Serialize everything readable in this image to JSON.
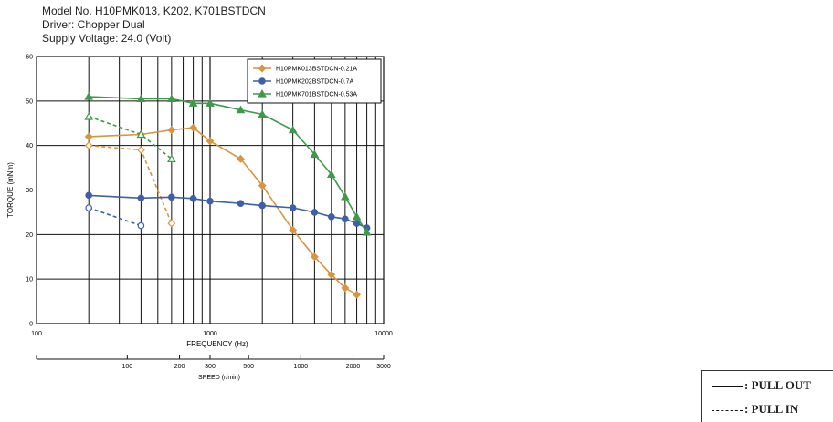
{
  "header": {
    "line1": "Model No. H10PMK013, K202, K701BSTDCN",
    "line2": "Driver: Chopper Dual",
    "line3": "Supply Voltage: 24.0 (Volt)"
  },
  "chart_data": {
    "type": "line",
    "xscale": "log",
    "xlabel": "FREQUENCY (Hz)",
    "ylabel": "TORQUE (mNm)",
    "xlim": [
      100,
      10000
    ],
    "ylim": [
      0,
      60
    ],
    "xticks": [
      {
        "value": 100,
        "label": "100"
      },
      {
        "value": 1000,
        "label": "1000"
      },
      {
        "value": 10000,
        "label": "10000"
      }
    ],
    "yticks": [
      0,
      10,
      20,
      30,
      40,
      50,
      60
    ],
    "speed_axis": {
      "label": "SPEED (r/min)",
      "ticks": [
        {
          "freq": 333.3,
          "label": "100"
        },
        {
          "freq": 666.7,
          "label": "200"
        },
        {
          "freq": 1000,
          "label": "300"
        },
        {
          "freq": 1666.7,
          "label": "500"
        },
        {
          "freq": 3333.3,
          "label": "1000"
        },
        {
          "freq": 6666.7,
          "label": "2000"
        },
        {
          "freq": 10000,
          "label": "3000"
        }
      ]
    },
    "grid": true,
    "legend_position": "top-right",
    "series": [
      {
        "name": "H10PMK013BSTDCN-0.21A",
        "color": "#d9943f",
        "marker": "diamond",
        "pull_out": {
          "x": [
            200,
            400,
            600,
            800,
            1000,
            1500,
            2000,
            3000,
            4000,
            5000,
            6000,
            7000
          ],
          "y": [
            42,
            42.5,
            43.5,
            44,
            41,
            37,
            31,
            21,
            15,
            11,
            8,
            6.5
          ]
        },
        "pull_in": {
          "x": [
            200,
            400,
            600
          ],
          "y": [
            40,
            39,
            22.5
          ]
        }
      },
      {
        "name": "H10PMK202BSTDCN-0.7A",
        "color": "#3f5fa8",
        "marker": "circle",
        "pull_out": {
          "x": [
            200,
            400,
            600,
            800,
            1000,
            1500,
            2000,
            3000,
            4000,
            5000,
            6000,
            7000,
            8000
          ],
          "y": [
            28.8,
            28.2,
            28.4,
            28.1,
            27.5,
            27,
            26.5,
            26,
            25,
            24,
            23.5,
            22.5,
            21.5
          ]
        },
        "pull_in": {
          "x": [
            200,
            400
          ],
          "y": [
            26,
            22
          ]
        }
      },
      {
        "name": "H10PMK701BSTDCN-0.53A",
        "color": "#3e9a4a",
        "marker": "triangle",
        "pull_out": {
          "x": [
            200,
            400,
            600,
            800,
            1000,
            1500,
            2000,
            3000,
            4000,
            5000,
            6000,
            7000,
            8000
          ],
          "y": [
            51,
            50.5,
            50.5,
            49.5,
            49.5,
            48,
            47,
            43.5,
            38,
            33.5,
            28.5,
            24,
            20.5
          ]
        },
        "pull_in": {
          "x": [
            200,
            400,
            600
          ],
          "y": [
            46.5,
            42.5,
            37
          ]
        }
      }
    ]
  },
  "line_legend": {
    "pull_out_label": ": PULL OUT",
    "pull_in_label": ": PULL IN"
  }
}
